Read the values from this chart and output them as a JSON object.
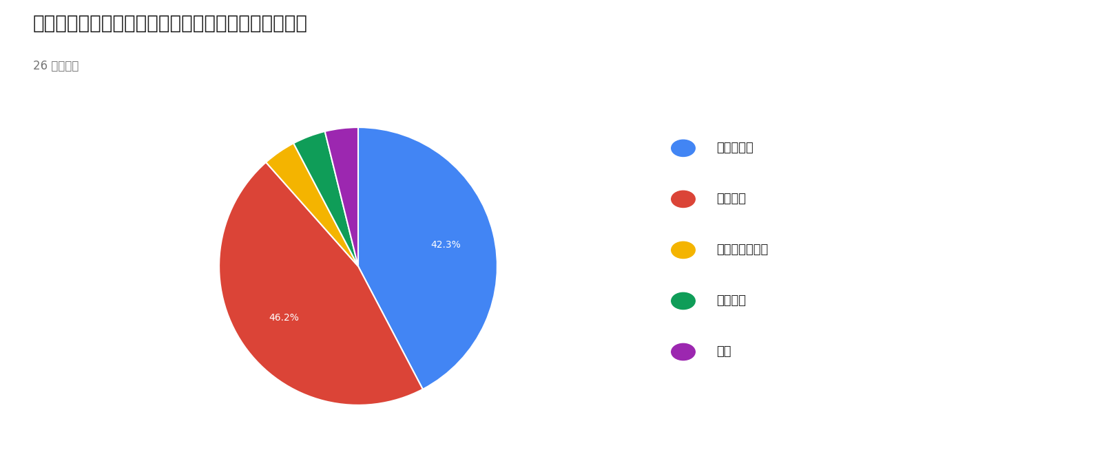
{
  "title": "ワークショップの全体的な満足度はいかがでしたか？",
  "subtitle": "26 件の回答",
  "labels": [
    "とても満足",
    "やや満足",
    "どちらでもない",
    "やや不満",
    "不満"
  ],
  "values": [
    11,
    12,
    1,
    1,
    1
  ],
  "colors": [
    "#4285F4",
    "#DB4437",
    "#F4B400",
    "#0F9D58",
    "#9C27B0"
  ],
  "background_color": "#ffffff",
  "title_fontsize": 20,
  "subtitle_fontsize": 12,
  "legend_fontsize": 13
}
